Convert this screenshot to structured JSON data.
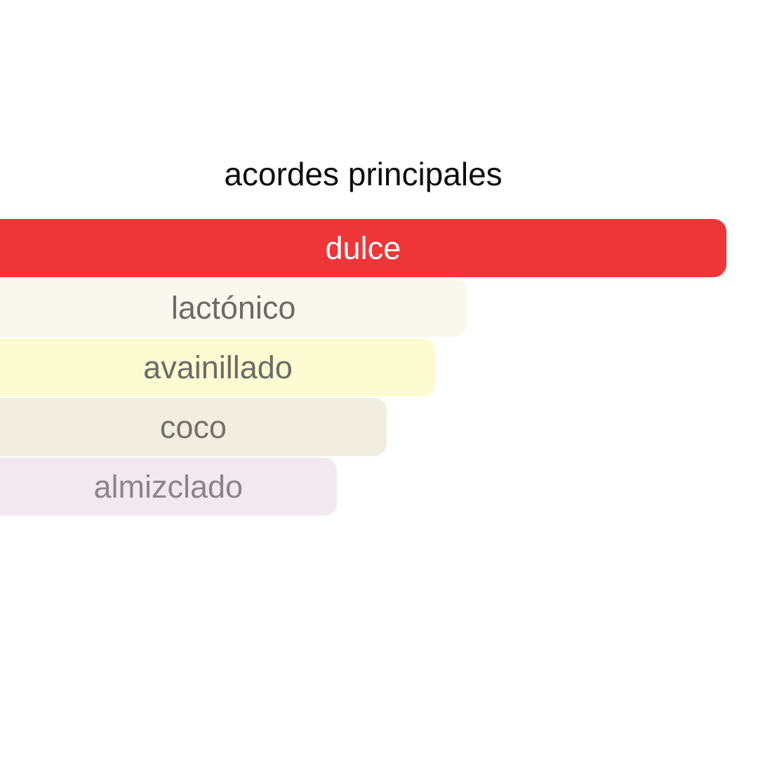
{
  "chart_data": {
    "type": "bar",
    "orientation": "horizontal",
    "title": "acordes principales",
    "title_color": "#0d0d0d",
    "background_color": "#ffffff",
    "legend": false,
    "grid": false,
    "axes_hidden": true,
    "value_range": [
      0,
      100
    ],
    "categories": [
      "dulce",
      "lactónico",
      "avainillado",
      "coco",
      "almizclado"
    ],
    "values": [
      100,
      64,
      60,
      53,
      46
    ],
    "accords": [
      {
        "label": "dulce",
        "value": 100,
        "width_pct": 95.8,
        "bg_color": "#ee3639",
        "text_color": "#ffffff"
      },
      {
        "label": "lactónico",
        "value": 64,
        "width_pct": 61.6,
        "bg_color": "#faf7ef",
        "text_color": "#6b6b66"
      },
      {
        "label": "avainillado",
        "value": 60,
        "width_pct": 57.5,
        "bg_color": "#fdfbd2",
        "text_color": "#6b6b66"
      },
      {
        "label": "coco",
        "value": 53,
        "width_pct": 51.0,
        "bg_color": "#f1ede0",
        "text_color": "#74726a"
      },
      {
        "label": "almizclado",
        "value": 46,
        "width_pct": 44.4,
        "bg_color": "#f2e9f0",
        "text_color": "#8a858a"
      }
    ]
  }
}
